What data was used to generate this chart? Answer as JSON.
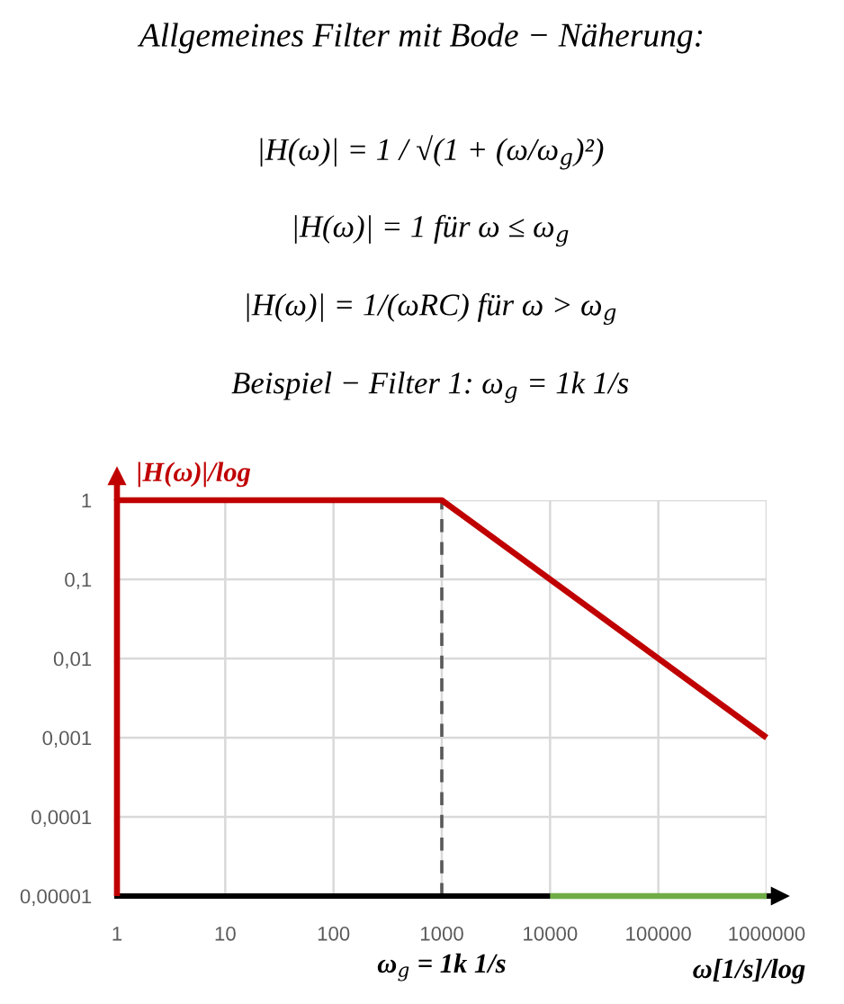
{
  "chart_data": {
    "type": "line",
    "title": "Allgemeines Filter mit Bode − Näherung:",
    "annotations": [
      "|H(ω)| = 1 / √(1 + (ω/ω$_{g}$)²)",
      "|H(ω)| = 1 für ω ≤ ω$_{g}$",
      "|H(ω)| = 1/(ωRC) für ω > ω$_{g}$",
      "Beispiel − Filter 1: ω$_{g}$ = 1k 1/s"
    ],
    "xlabel": "ω[1/s]/log",
    "ylabel": "|H(ω)|/log",
    "log": "xy",
    "xlim": [
      1,
      1000000
    ],
    "ylim": [
      1e-05,
      1
    ],
    "xticks": [
      1,
      10,
      100,
      1000,
      10000,
      100000,
      1000000
    ],
    "yticks": [
      {
        "value": 1e-05,
        "label": "0,00001"
      },
      {
        "value": 0.0001,
        "label": "0,0001"
      },
      {
        "value": 0.001,
        "label": "0,001"
      },
      {
        "value": 0.01,
        "label": "0,01"
      },
      {
        "value": 0.1,
        "label": "0,1"
      },
      1
    ],
    "grid": true,
    "line_style": "solid",
    "series": [
      {
        "color": "#c00000",
        "x": [
          1,
          1,
          1000,
          1000000
        ],
        "values": [
          1e-05,
          1,
          1,
          0.001
        ]
      },
      {
        "color": "#70ad47",
        "x": [
          10000,
          1000000
        ],
        "values": [
          1e-05,
          1e-05
        ]
      }
    ],
    "ref_lines": [
      {
        "axis": "x",
        "value": 1000,
        "label": "ω$_{g}$ = 1k 1/s",
        "color": "#595959",
        "line_style": "dashed"
      }
    ]
  }
}
